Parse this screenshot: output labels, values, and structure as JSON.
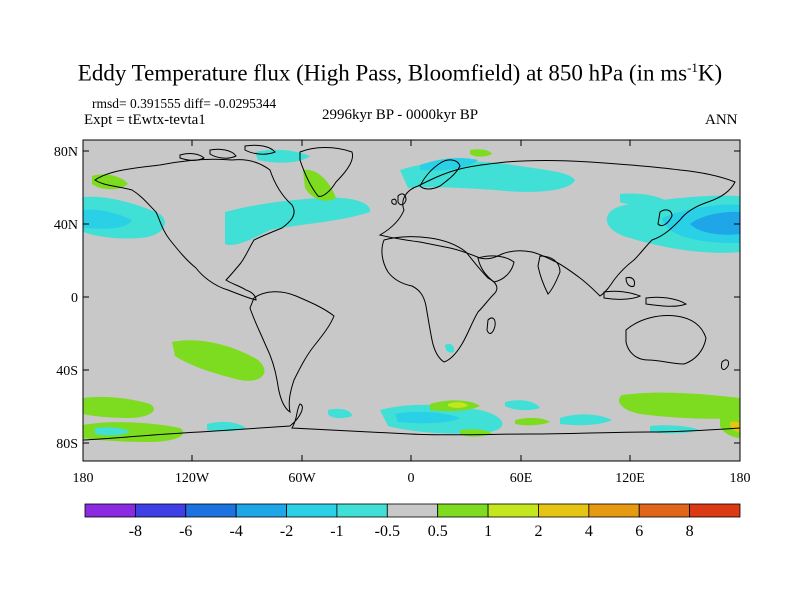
{
  "title": {
    "main": "Eddy Temperature flux (High Pass, Bloomfield) at 850 hPa (in ms",
    "sup": "-1",
    "end": "K)"
  },
  "stats": "rmsd= 0.391555 diff= -0.0295344",
  "experiment": "Expt = tEwtx-tevta1",
  "period": "2996kyr BP - 0000kyr BP",
  "season": "ANN",
  "axes": {
    "lat_labels": [
      "80N",
      "40N",
      "0",
      "40S",
      "80S"
    ],
    "lon_labels": [
      "180",
      "120W",
      "60W",
      "0",
      "60E",
      "120E",
      "180"
    ]
  },
  "colorbar": {
    "labels": [
      "-8",
      "-6",
      "-4",
      "-2",
      "-1",
      "-0.5",
      "0.5",
      "1",
      "2",
      "4",
      "6",
      "8"
    ],
    "colors": [
      "#8a2be2",
      "#3f3fe6",
      "#1e72e0",
      "#1ea6e8",
      "#2ad0e6",
      "#40e0d6",
      "#c8c8c8",
      "#7ddc1f",
      "#c3e61c",
      "#e5c414",
      "#e69a12",
      "#e2661a",
      "#dc3a14"
    ]
  },
  "colors": {
    "land_background": "#c8c8c8",
    "coast": "#000000"
  }
}
